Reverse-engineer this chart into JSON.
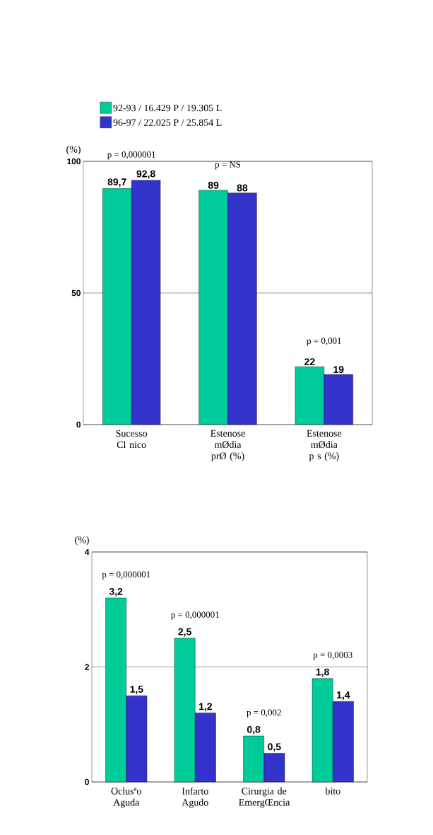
{
  "chart_data": [
    {
      "type": "bar",
      "ylabel": "(%)",
      "categories": [
        "Sucesso Cl nico",
        "Estenose mØdia prØ (%)",
        "Estenose mØdia p s (%)"
      ],
      "series": [
        {
          "name": "92-93 / 16.429 P / 19.305 L",
          "color": "#00cc99",
          "values": [
            89.7,
            89,
            22
          ],
          "value_labels": [
            "89,7",
            "89",
            "22"
          ]
        },
        {
          "name": "96-97 / 22.025 P / 25.854 L",
          "color": "#3333cc",
          "values": [
            92.8,
            88,
            19
          ],
          "value_labels": [
            "92,8",
            "88",
            "19"
          ]
        }
      ],
      "ylim": [
        0,
        100
      ],
      "yticks": [
        0,
        50,
        100
      ],
      "grid": "y",
      "legend": "top",
      "annotations": [
        "p = 0,000001",
        "p = NS",
        "p = 0,001"
      ]
    },
    {
      "type": "bar",
      "ylabel": "(%)",
      "categories": [
        "Oclusªo Aguda",
        "Infarto Agudo",
        "Cirurgia de EmergŒncia",
        "bito"
      ],
      "series": [
        {
          "color": "#00cc99",
          "values": [
            3.2,
            2.5,
            0.8,
            1.8
          ],
          "value_labels": [
            "3,2",
            "2,5",
            "0,8",
            "1,8"
          ]
        },
        {
          "color": "#3333cc",
          "values": [
            1.5,
            1.2,
            0.5,
            1.4
          ],
          "value_labels": [
            "1,5",
            "1,2",
            "0,5",
            "1,4"
          ]
        }
      ],
      "ylim": [
        0,
        4
      ],
      "yticks": [
        0,
        2,
        4
      ],
      "grid": "y",
      "annotations": [
        "p = 0,000001",
        "p = 0,000001",
        "p = 0,002",
        "p = 0,0003"
      ]
    }
  ]
}
